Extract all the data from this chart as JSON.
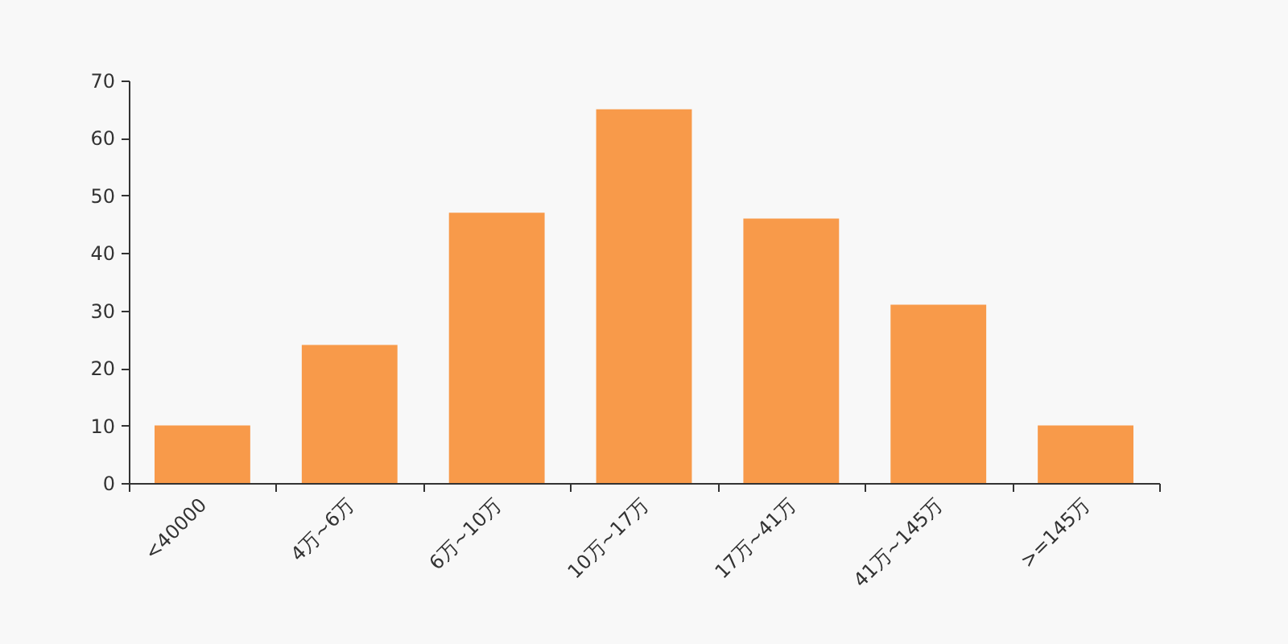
{
  "chart_data": {
    "type": "bar",
    "categories": [
      "<40000",
      "4万~6万",
      "6万~10万",
      "10万~17万",
      "17万~41万",
      "41万~145万",
      ">=145万"
    ],
    "values": [
      10,
      24,
      47,
      65,
      46,
      31,
      10
    ],
    "color": "#f89a4a",
    "ylim": [
      0,
      70
    ],
    "yticks": [
      0,
      10,
      20,
      30,
      40,
      50,
      60,
      70
    ]
  }
}
